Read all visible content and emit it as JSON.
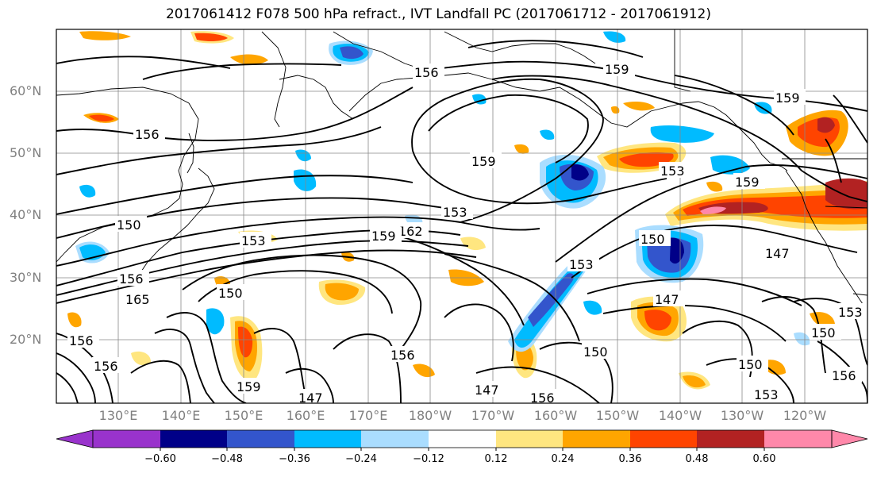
{
  "title": "2017061412 F078 500 hPa refract., IVT Landfall PC (2017061712 - 2017061912)",
  "lat_labels": [
    "60°N",
    "50°N",
    "40°N",
    "30°N",
    "20°N"
  ],
  "lon_labels": [
    "130°E",
    "140°E",
    "150°E",
    "160°E",
    "170°E",
    "180°W",
    "170°W",
    "160°W",
    "150°W",
    "140°W",
    "130°W",
    "120°W"
  ],
  "contour_labels": [
    "156",
    "159",
    "156",
    "159",
    "159",
    "153",
    "159",
    "150",
    "153",
    "162",
    "159",
    "153",
    "150",
    "156",
    "165",
    "150",
    "147",
    "147",
    "153",
    "156",
    "156",
    "150",
    "159",
    "156",
    "147",
    "147",
    "156",
    "150",
    "150",
    "153",
    "153",
    "156"
  ],
  "colorbar": {
    "ticks": [
      "−0.60",
      "−0.48",
      "−0.36",
      "−0.24",
      "−0.12",
      "0.12",
      "0.24",
      "0.36",
      "0.48",
      "0.60"
    ],
    "colors": [
      "#9933cc",
      "#000088",
      "#3355cc",
      "#00bbff",
      "#aaddff",
      "#ffffff",
      "#ffe680",
      "#ffa500",
      "#ff4400",
      "#b22222",
      "#ff88aa"
    ]
  }
}
